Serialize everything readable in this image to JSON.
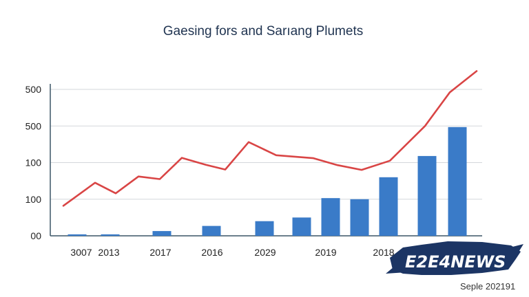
{
  "chart_data": {
    "type": "bar",
    "title": "Gaesing fors and Sarıang Plumets",
    "ytick_labels": [
      "00",
      "100",
      "100",
      "500",
      "500"
    ],
    "xtick_labels": [
      "3007",
      "2013",
      "2017",
      "2016",
      "2029",
      "2019",
      "2018"
    ],
    "ylim": [
      0,
      400
    ],
    "grid": true,
    "legend": "none",
    "series": [
      {
        "type": "bar",
        "color": "#3a7bc8",
        "values": [
          4,
          4,
          13,
          27,
          40,
          50,
          103,
          100,
          160,
          218,
          297
        ]
      },
      {
        "type": "line",
        "color": "#d94545",
        "values": [
          82,
          145,
          116,
          162,
          155,
          213,
          194,
          181,
          256,
          220,
          212,
          193,
          180,
          205,
          300,
          392,
          450
        ]
      }
    ]
  },
  "watermark": {
    "brand": "E2E4NEWS",
    "date": "Seple 202191",
    "colors": {
      "brush": "#1c3564",
      "text": "#ffffff"
    }
  }
}
